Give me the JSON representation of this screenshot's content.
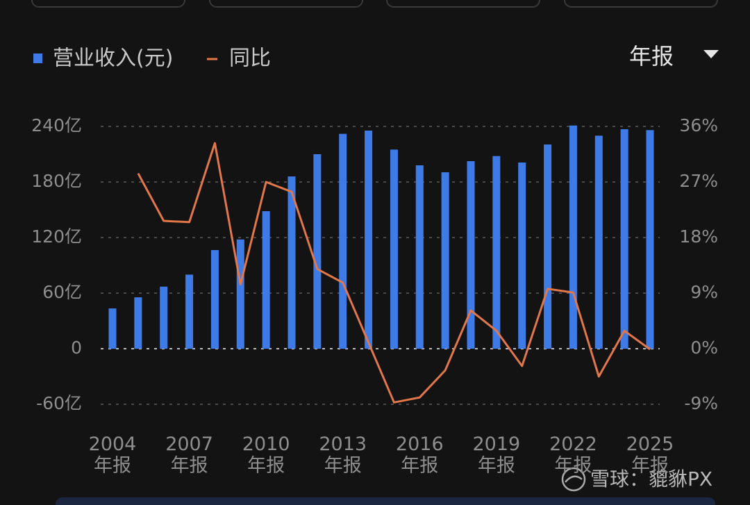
{
  "chart_data": {
    "type": "bar-line",
    "legend": {
      "bar": "营业收入(元)",
      "line": "同比"
    },
    "period_selector": "年报",
    "watermark": "雪球：貔貅PX",
    "categories": [
      "2004\n年报",
      null,
      null,
      "2007\n年报",
      null,
      null,
      "2010\n年报",
      null,
      null,
      "2013\n年报",
      null,
      null,
      "2016\n年报",
      null,
      null,
      "2019\n年报",
      null,
      null,
      "2022\n年报",
      null,
      null,
      "2025\n年报"
    ],
    "series": [
      {
        "name": "营业收入(元)",
        "color": "#3f7be6",
        "type": "bar",
        "values": [
          43.5,
          55.5,
          67,
          80,
          106.5,
          118,
          148.5,
          186,
          210,
          232,
          235.5,
          215,
          198,
          190.5,
          202.5,
          208,
          201,
          220.5,
          241,
          230,
          237,
          236
        ]
      },
      {
        "name": "同比",
        "color": "#e2774a",
        "type": "line",
        "axis": "y2",
        "values": [
          null,
          28.4,
          20.7,
          20.5,
          33.3,
          10.4,
          27.0,
          25.4,
          12.9,
          10.7,
          1.0,
          -8.7,
          -7.9,
          -3.5,
          6.2,
          2.9,
          -2.8,
          9.7,
          9.1,
          -4.5,
          2.9,
          -0.1
        ]
      }
    ],
    "ylim": [
      -60,
      240
    ],
    "yticks": [
      {
        "value": -60,
        "label": "-60亿"
      },
      0,
      {
        "value": 60,
        "label": "60亿"
      },
      {
        "value": 120,
        "label": "120亿"
      },
      {
        "value": 180,
        "label": "180亿"
      },
      {
        "value": 240,
        "label": "240亿"
      }
    ],
    "y2lim": [
      -9,
      36
    ],
    "y2ticks": [
      {
        "value": -9,
        "label": "-9%"
      },
      {
        "value": 0,
        "label": "0%"
      },
      {
        "value": 9,
        "label": "9%"
      },
      {
        "value": 18,
        "label": "18%"
      },
      {
        "value": 27,
        "label": "27%"
      },
      {
        "value": 36,
        "label": "36%"
      }
    ],
    "grid": true
  }
}
